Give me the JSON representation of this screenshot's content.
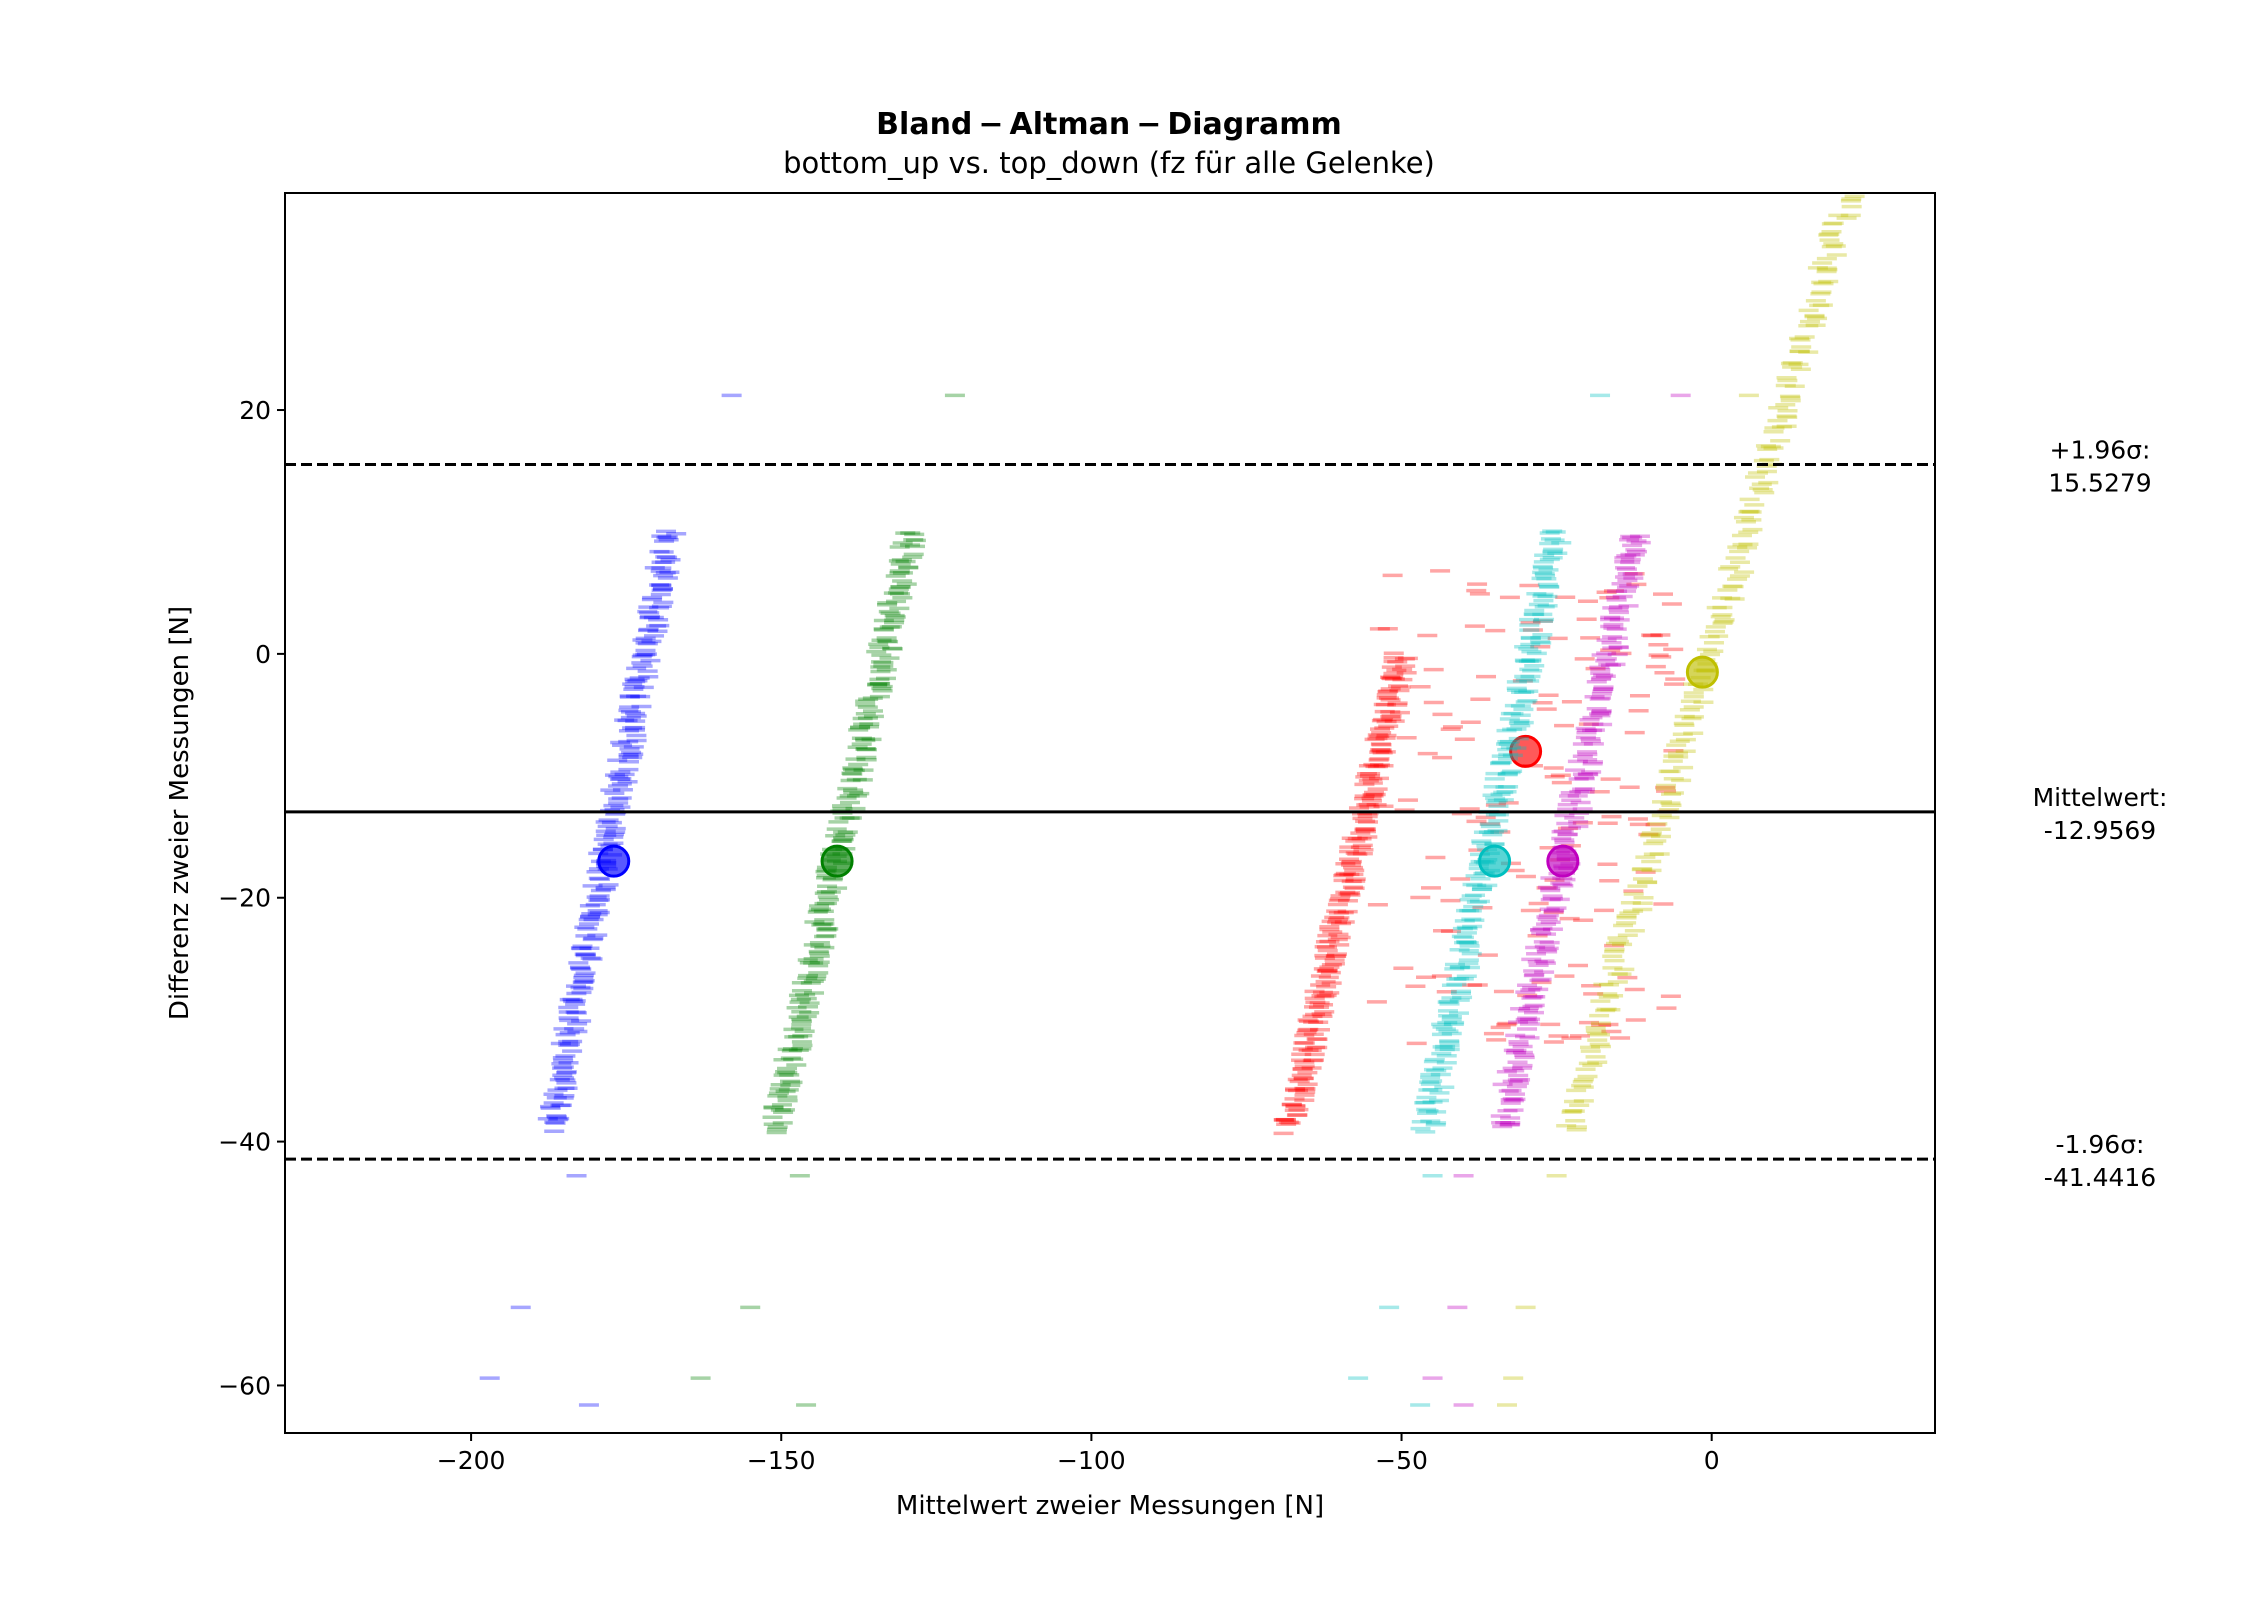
{
  "chart_data": {
    "type": "scatter",
    "title": "Bland − Altman − Diagramm",
    "subtitle": "bottom_up vs. top_down (fz für alle Gelenke)",
    "xlabel": "Mittelwert zweier Messungen [N]",
    "ylabel": "Differenz zweier Messungen [N]",
    "xlim": [
      -230,
      36
    ],
    "ylim": [
      -63.9,
      37.8
    ],
    "xticks": [
      -200,
      -150,
      -100,
      -50,
      0
    ],
    "yticks": [
      20,
      0,
      -20,
      -40,
      -60
    ],
    "xtick_labels": [
      "−200",
      "−150",
      "−100",
      "−50",
      "0"
    ],
    "ytick_labels": [
      "20",
      "0",
      "−20",
      "−40",
      "−60"
    ],
    "grid": false,
    "marker": "horizontal dash",
    "reference_lines": [
      {
        "value": 15.5279,
        "style": "dashed",
        "label_line1": "+1.96σ:",
        "label_line2": "15.5279"
      },
      {
        "value": -12.9569,
        "style": "solid",
        "label_line1": "Mittelwert:",
        "label_line2": "-12.9569"
      },
      {
        "value": -41.4416,
        "style": "dashed",
        "label_line1": "-1.96σ:",
        "label_line2": "-41.4416"
      }
    ],
    "series": [
      {
        "color": "#0000ff",
        "band": [
          [
            -187,
            -39
          ],
          [
            -168,
            10
          ]
        ],
        "mean": [
          -177,
          -17
        ],
        "outliers": [
          [
            -158,
            21.2
          ],
          [
            -183,
            -42.8
          ],
          [
            -192,
            -53.6
          ],
          [
            -197,
            -59.4
          ],
          [
            -181,
            -61.6
          ]
        ]
      },
      {
        "color": "#008000",
        "band": [
          [
            -151,
            -39
          ],
          [
            -129,
            10
          ]
        ],
        "mean": [
          -141,
          -17
        ],
        "outliers": [
          [
            -122,
            21.2
          ],
          [
            -147,
            -42.8
          ],
          [
            -155,
            -53.6
          ],
          [
            -163,
            -59.4
          ],
          [
            -146,
            -61.6
          ]
        ]
      },
      {
        "color": "#ff0000",
        "band": [
          [
            -68,
            -39
          ],
          [
            -50,
            0
          ]
        ],
        "mean": [
          -30,
          -8
        ],
        "scatter_region": {
          "x": [
            -56,
            -5
          ],
          "y": [
            -32,
            7
          ]
        },
        "outliers": []
      },
      {
        "color": "#00bfbf",
        "band": [
          [
            -46,
            -39
          ],
          [
            -25,
            10
          ]
        ],
        "mean": [
          -35,
          -17
        ],
        "outliers": [
          [
            -18,
            21.2
          ],
          [
            -45,
            -42.8
          ],
          [
            -52,
            -53.6
          ],
          [
            -57,
            -59.4
          ],
          [
            -47,
            -61.6
          ]
        ]
      },
      {
        "color": "#bf00bf",
        "band": [
          [
            -34,
            -39
          ],
          [
            -12,
            10
          ]
        ],
        "mean": [
          -24,
          -17
        ],
        "outliers": [
          [
            -5,
            21.2
          ],
          [
            -40,
            -42.8
          ],
          [
            -41,
            -53.6
          ],
          [
            -45,
            -59.4
          ],
          [
            -40,
            -61.6
          ]
        ]
      },
      {
        "color": "#bfbf00",
        "band": [
          [
            -23,
            -39
          ],
          [
            22,
            37.8
          ]
        ],
        "mean": [
          -1.5,
          -1.5
        ],
        "outliers": [
          [
            6,
            21.2
          ],
          [
            -25,
            -42.8
          ],
          [
            -30,
            -53.6
          ],
          [
            -32,
            -59.4
          ],
          [
            -33,
            -61.6
          ]
        ]
      }
    ]
  }
}
